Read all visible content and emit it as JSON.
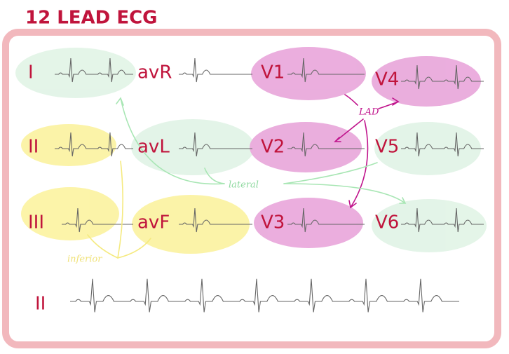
{
  "header": {
    "title": "12 LEAD ECG"
  },
  "leads": [
    {
      "label": "I"
    },
    {
      "label": "avR"
    },
    {
      "label": "V1"
    },
    {
      "label": "V4"
    },
    {
      "label": "II"
    },
    {
      "label": "avL"
    },
    {
      "label": "V2"
    },
    {
      "label": "V5"
    },
    {
      "label": "III"
    },
    {
      "label": "avF"
    },
    {
      "label": "V3"
    },
    {
      "label": "V6"
    }
  ],
  "rhythm_strip": {
    "label": "II"
  },
  "annotations": {
    "lad": "LAD",
    "lateral": "lateral",
    "inferior": "inferior"
  }
}
